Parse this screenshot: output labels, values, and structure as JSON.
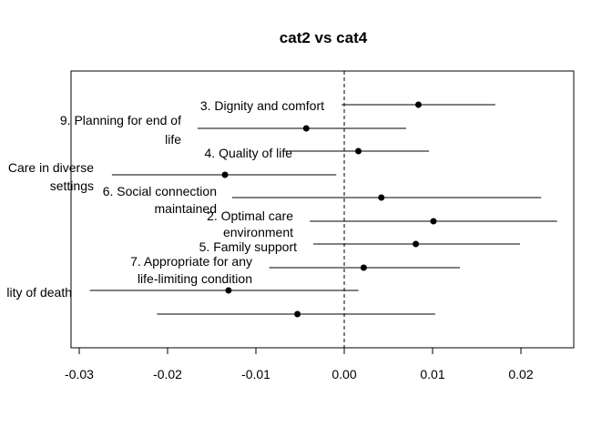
{
  "chart_data": {
    "type": "forest",
    "title": "cat2 vs cat4",
    "xlabel": "",
    "ylabel": "",
    "xlim": [
      -0.03,
      0.026
    ],
    "x_ticks": [
      -0.03,
      -0.02,
      -0.01,
      0.0,
      0.01,
      0.02
    ],
    "x_tick_labels": [
      "-0.03",
      "-0.02",
      "-0.01",
      "0.00",
      "0.01",
      "0.02"
    ],
    "reference_line": 0,
    "reference_line_style": "dashed",
    "grid": false,
    "points": [
      {
        "label": "3. Dignity and comfort",
        "estimate": 0.0084,
        "lower": -0.0003,
        "upper": 0.0171
      },
      {
        "label": "9. Planning for end of life",
        "estimate": -0.0043,
        "lower": -0.0166,
        "upper": 0.007
      },
      {
        "label": "4. Quality of life",
        "estimate": 0.0016,
        "lower": -0.0068,
        "upper": 0.0096
      },
      {
        "label": "Care in diverse settings",
        "estimate": -0.0135,
        "lower": -0.0263,
        "upper": -0.0009
      },
      {
        "label": "6. Social connection maintained",
        "estimate": 0.0042,
        "lower": -0.0127,
        "upper": 0.0223
      },
      {
        "label": "2. Optimal care environment",
        "estimate": 0.0101,
        "lower": -0.0039,
        "upper": 0.0241
      },
      {
        "label": "5. Family support",
        "estimate": 0.0081,
        "lower": -0.0035,
        "upper": 0.0199
      },
      {
        "label": "7. Appropriate for any life-limiting condition",
        "estimate": 0.0022,
        "lower": -0.0085,
        "upper": 0.0131
      },
      {
        "label": "lity of death",
        "estimate": -0.0131,
        "lower": -0.0288,
        "upper": 0.0016
      },
      {
        "label": "",
        "estimate": -0.0053,
        "lower": -0.0212,
        "upper": 0.0103
      }
    ]
  }
}
